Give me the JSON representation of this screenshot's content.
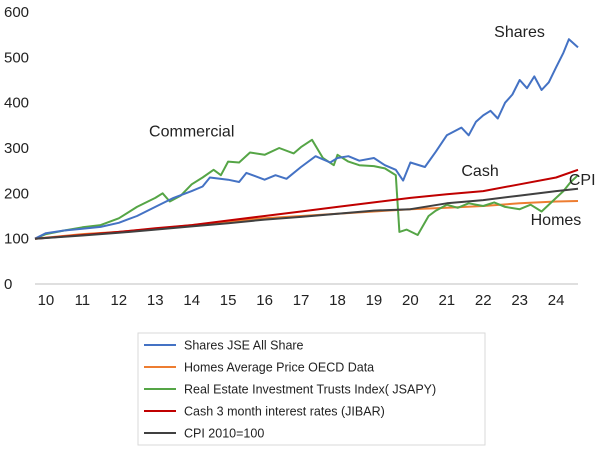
{
  "chart_data": {
    "type": "line",
    "title": "",
    "xlabel": "",
    "ylabel": "",
    "xlim": [
      9.7,
      24.6
    ],
    "ylim": [
      0,
      600
    ],
    "x_ticks": [
      10,
      11,
      12,
      13,
      14,
      15,
      16,
      17,
      18,
      19,
      20,
      21,
      22,
      23,
      24
    ],
    "x_tick_labels": [
      "10",
      "11",
      "12",
      "13",
      "14",
      "15",
      "16",
      "17",
      "18",
      "19",
      "20",
      "21",
      "22",
      "23",
      "24"
    ],
    "y_ticks": [
      0,
      100,
      200,
      300,
      400,
      500,
      600
    ],
    "y_tick_labels": [
      "0",
      "100",
      "200",
      "300",
      "400",
      "500",
      "600"
    ],
    "grid": false,
    "legend_position": "bottom",
    "series": [
      {
        "name": "Shares JSE All Share",
        "color": "#4472c4",
        "annotation": "Shares",
        "points": [
          [
            9.7,
            100
          ],
          [
            10,
            112
          ],
          [
            10.5,
            118
          ],
          [
            11,
            122
          ],
          [
            11.5,
            126
          ],
          [
            12,
            135
          ],
          [
            12.5,
            150
          ],
          [
            13,
            170
          ],
          [
            13.5,
            190
          ],
          [
            14,
            205
          ],
          [
            14.3,
            215
          ],
          [
            14.5,
            235
          ],
          [
            15,
            230
          ],
          [
            15.3,
            225
          ],
          [
            15.5,
            245
          ],
          [
            16,
            230
          ],
          [
            16.3,
            240
          ],
          [
            16.6,
            232
          ],
          [
            17,
            258
          ],
          [
            17.4,
            282
          ],
          [
            17.8,
            268
          ],
          [
            18,
            278
          ],
          [
            18.3,
            282
          ],
          [
            18.6,
            272
          ],
          [
            19,
            278
          ],
          [
            19.3,
            262
          ],
          [
            19.6,
            252
          ],
          [
            19.8,
            228
          ],
          [
            20,
            268
          ],
          [
            20.4,
            258
          ],
          [
            20.7,
            292
          ],
          [
            21,
            328
          ],
          [
            21.4,
            345
          ],
          [
            21.6,
            328
          ],
          [
            21.8,
            358
          ],
          [
            22,
            372
          ],
          [
            22.2,
            382
          ],
          [
            22.4,
            365
          ],
          [
            22.6,
            400
          ],
          [
            22.8,
            418
          ],
          [
            23,
            450
          ],
          [
            23.2,
            432
          ],
          [
            23.4,
            458
          ],
          [
            23.6,
            428
          ],
          [
            23.8,
            445
          ],
          [
            24,
            478
          ],
          [
            24.2,
            510
          ],
          [
            24.35,
            540
          ],
          [
            24.6,
            522
          ]
        ]
      },
      {
        "name": "Homes Average Price OECD Data",
        "color": "#ed7d31",
        "annotation": "Homes",
        "points": [
          [
            9.7,
            100
          ],
          [
            11,
            110
          ],
          [
            12,
            115
          ],
          [
            13,
            122
          ],
          [
            14,
            130
          ],
          [
            15,
            138
          ],
          [
            16,
            145
          ],
          [
            17,
            150
          ],
          [
            18,
            155
          ],
          [
            19,
            160
          ],
          [
            20,
            165
          ],
          [
            21,
            168
          ],
          [
            22,
            172
          ],
          [
            23,
            178
          ],
          [
            24,
            182
          ],
          [
            24.6,
            183
          ]
        ]
      },
      {
        "name": "Real Estate Investment Trusts Index( JSAPY)",
        "color": "#55a546",
        "annotation": "Commercial",
        "points": [
          [
            9.7,
            100
          ],
          [
            10,
            110
          ],
          [
            10.5,
            118
          ],
          [
            11,
            125
          ],
          [
            11.5,
            130
          ],
          [
            12,
            145
          ],
          [
            12.5,
            170
          ],
          [
            13,
            190
          ],
          [
            13.2,
            200
          ],
          [
            13.4,
            182
          ],
          [
            13.7,
            195
          ],
          [
            14,
            220
          ],
          [
            14.3,
            235
          ],
          [
            14.6,
            252
          ],
          [
            14.8,
            240
          ],
          [
            15,
            270
          ],
          [
            15.3,
            268
          ],
          [
            15.6,
            290
          ],
          [
            16,
            285
          ],
          [
            16.4,
            300
          ],
          [
            16.8,
            288
          ],
          [
            17,
            302
          ],
          [
            17.3,
            318
          ],
          [
            17.6,
            278
          ],
          [
            17.9,
            262
          ],
          [
            18,
            285
          ],
          [
            18.3,
            270
          ],
          [
            18.6,
            262
          ],
          [
            19,
            260
          ],
          [
            19.3,
            255
          ],
          [
            19.5,
            245
          ],
          [
            19.6,
            240
          ],
          [
            19.7,
            115
          ],
          [
            19.9,
            120
          ],
          [
            20.2,
            108
          ],
          [
            20.5,
            150
          ],
          [
            20.7,
            162
          ],
          [
            21,
            175
          ],
          [
            21.3,
            168
          ],
          [
            21.6,
            178
          ],
          [
            22,
            172
          ],
          [
            22.3,
            180
          ],
          [
            22.6,
            170
          ],
          [
            23,
            165
          ],
          [
            23.3,
            175
          ],
          [
            23.6,
            160
          ],
          [
            24,
            190
          ],
          [
            24.2,
            205
          ],
          [
            24.4,
            225
          ],
          [
            24.6,
            240
          ]
        ]
      },
      {
        "name": "Cash 3 month interest rates (JIBAR)",
        "color": "#c00000",
        "annotation": "Cash",
        "points": [
          [
            9.7,
            100
          ],
          [
            11,
            108
          ],
          [
            12,
            115
          ],
          [
            13,
            123
          ],
          [
            14,
            130
          ],
          [
            15,
            140
          ],
          [
            16,
            150
          ],
          [
            17,
            160
          ],
          [
            18,
            170
          ],
          [
            19,
            180
          ],
          [
            20,
            190
          ],
          [
            21,
            198
          ],
          [
            22,
            205
          ],
          [
            23,
            220
          ],
          [
            24,
            235
          ],
          [
            24.6,
            252
          ]
        ]
      },
      {
        "name": "CPI 2010=100",
        "color": "#404040",
        "annotation": "CPI",
        "points": [
          [
            9.7,
            100
          ],
          [
            11,
            107
          ],
          [
            12,
            113
          ],
          [
            13,
            120
          ],
          [
            14,
            127
          ],
          [
            15,
            134
          ],
          [
            16,
            142
          ],
          [
            17,
            148
          ],
          [
            18,
            155
          ],
          [
            19,
            162
          ],
          [
            20,
            165
          ],
          [
            21,
            178
          ],
          [
            22,
            185
          ],
          [
            23,
            195
          ],
          [
            24,
            205
          ],
          [
            24.6,
            210
          ]
        ]
      }
    ]
  }
}
